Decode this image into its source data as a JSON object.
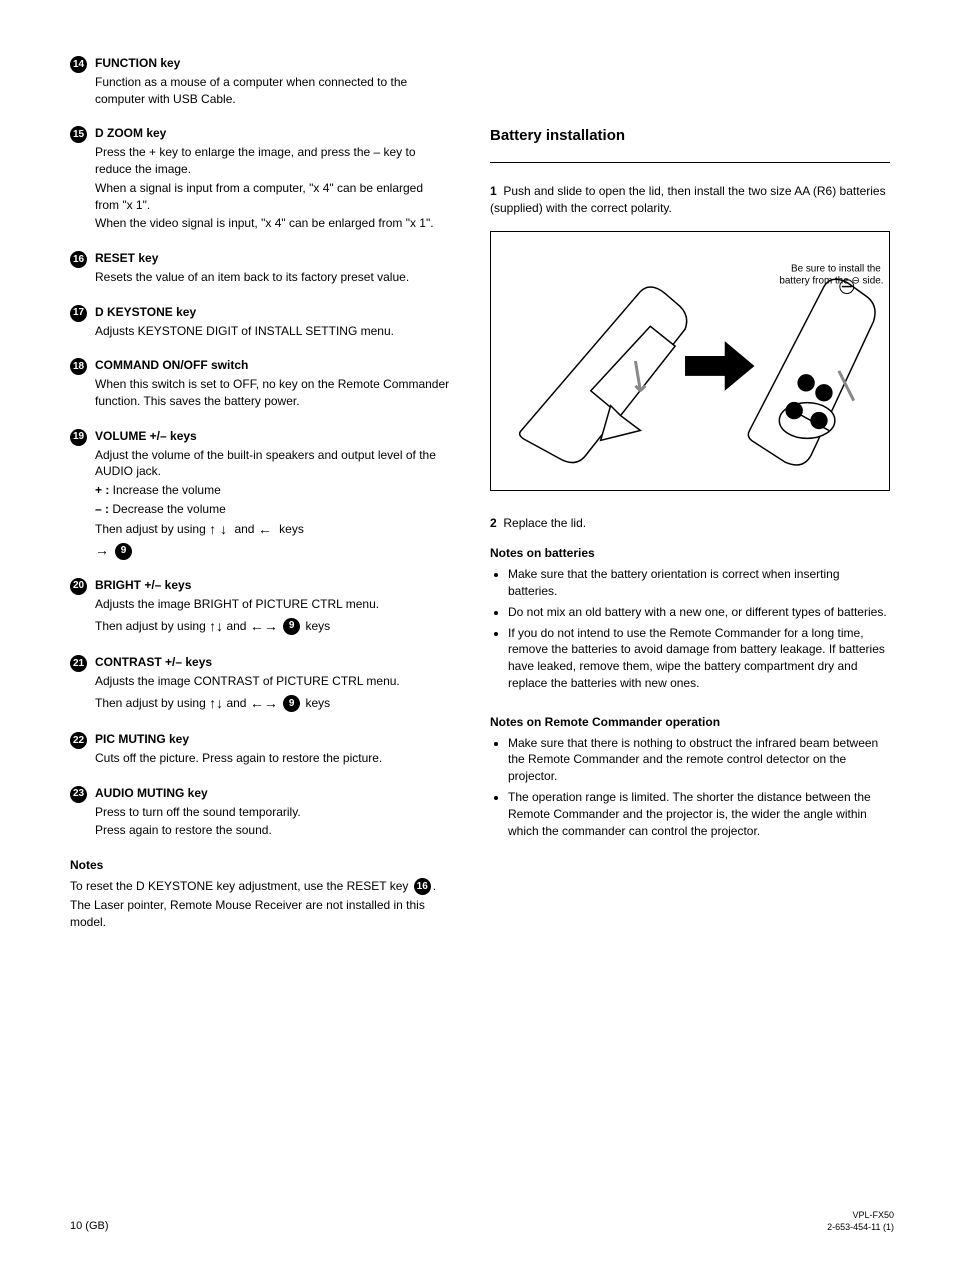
{
  "left": {
    "items": [
      {
        "num": "14",
        "title": "FUNCTION key",
        "desc": [
          "Function as a mouse of a computer when connected to the computer with USB Cable."
        ]
      },
      {
        "num": "15",
        "title": "D ZOOM key",
        "desc": [
          "Press the + key to enlarge the image, and press the – key to reduce the image.",
          "When a signal is input from a computer, \"x 4\" can be enlarged from \"x 1\".",
          "When the video signal is input, \"x 4\" can be enlarged from \"x 1\"."
        ]
      },
      {
        "num": "16",
        "title": "RESET key",
        "desc": [
          "Resets the value of an item back to its factory preset value."
        ]
      },
      {
        "num": "17",
        "title": "D KEYSTONE key",
        "desc": [
          "Adjusts KEYSTONE DIGIT of INSTALL SETTING menu."
        ]
      },
      {
        "num": "18",
        "title": "COMMAND ON/OFF switch",
        "desc": [
          "When this switch is set to OFF, no key on the Remote Commander function. This saves the battery power."
        ]
      },
      {
        "num": "19",
        "title": "VOLUME +/– keys",
        "desc": [
          "Adjust the volume of the built-in speakers and output level of the AUDIO jack.",
          "<b>+ :</b> Increase the volume",
          "<b>– :</b> Decrease the volume"
        ]
      }
    ],
    "arrowItems": [
      {
        "pre": "Then adjust by using ",
        "mid": " and ",
        "post": " keys ",
        "refIcon": "9"
      },
      {
        "num": "20",
        "title": "BRIGHT +/– keys",
        "desc": "Adjusts the image BRIGHT of PICTURE CTRL menu.",
        "then": "Then adjust by using",
        "refIcon": "9",
        "midword": "and",
        "endword": "keys"
      },
      {
        "num": "21",
        "title": "CONTRAST +/– keys",
        "desc": "Adjusts the image CONTRAST of PICTURE CTRL menu.",
        "then": "Then adjust by using",
        "refIcon": "9",
        "midword": "and",
        "endword": "keys"
      },
      {
        "num": "22",
        "title": "PIC MUTING key",
        "desc": [
          "Cuts off the picture. Press again to restore the picture."
        ]
      },
      {
        "num": "23",
        "title": "AUDIO MUTING key",
        "desc": [
          "Press to turn off the sound temporarily.",
          "Press again to restore the sound."
        ]
      }
    ],
    "notes": {
      "title": "Notes",
      "line1": "To reset the D KEYSTONE key adjustment, use the RESET key",
      "refIcon": "16",
      "line2": "The Laser pointer, Remote Mouse Receiver are not installed in this model."
    }
  },
  "right": {
    "heading": "Battery installation",
    "hrAfter": true,
    "sub1": "<b>1</b>&nbsp;&nbsp;Push and slide to open the lid, then install the two size AA (R6) batteries (supplied) with the correct polarity.",
    "figCaption": "Be sure to install the battery from the ⊖ side.",
    "sub2": "<b>2</b>&nbsp;&nbsp;Replace the lid.",
    "notes": {
      "title": "Notes on batteries",
      "bullets": [
        "Make sure that the battery orientation is correct when inserting batteries.",
        "Do not mix an old battery with a new one, or different types of batteries.",
        "If you do not intend to use the Remote Commander for a long time, remove the batteries to avoid damage from battery leakage. If batteries have leaked, remove them, wipe the battery compartment dry and replace the batteries with new ones."
      ]
    },
    "notes2": {
      "title": "Notes on Remote Commander operation",
      "bullets": [
        "Make sure that there is nothing to obstruct the infrared beam between the Remote Commander and the remote control detector on the projector.",
        "The operation range is limited. The shorter the distance between the Remote Commander and the projector is, the wider the angle within which the commander can control the projector."
      ]
    }
  },
  "footer": {
    "page": "10 (GB)",
    "right": "VPL-FX50\n2-653-454-11 (1)"
  },
  "colors": {
    "text": "#000000",
    "bg": "#ffffff"
  }
}
